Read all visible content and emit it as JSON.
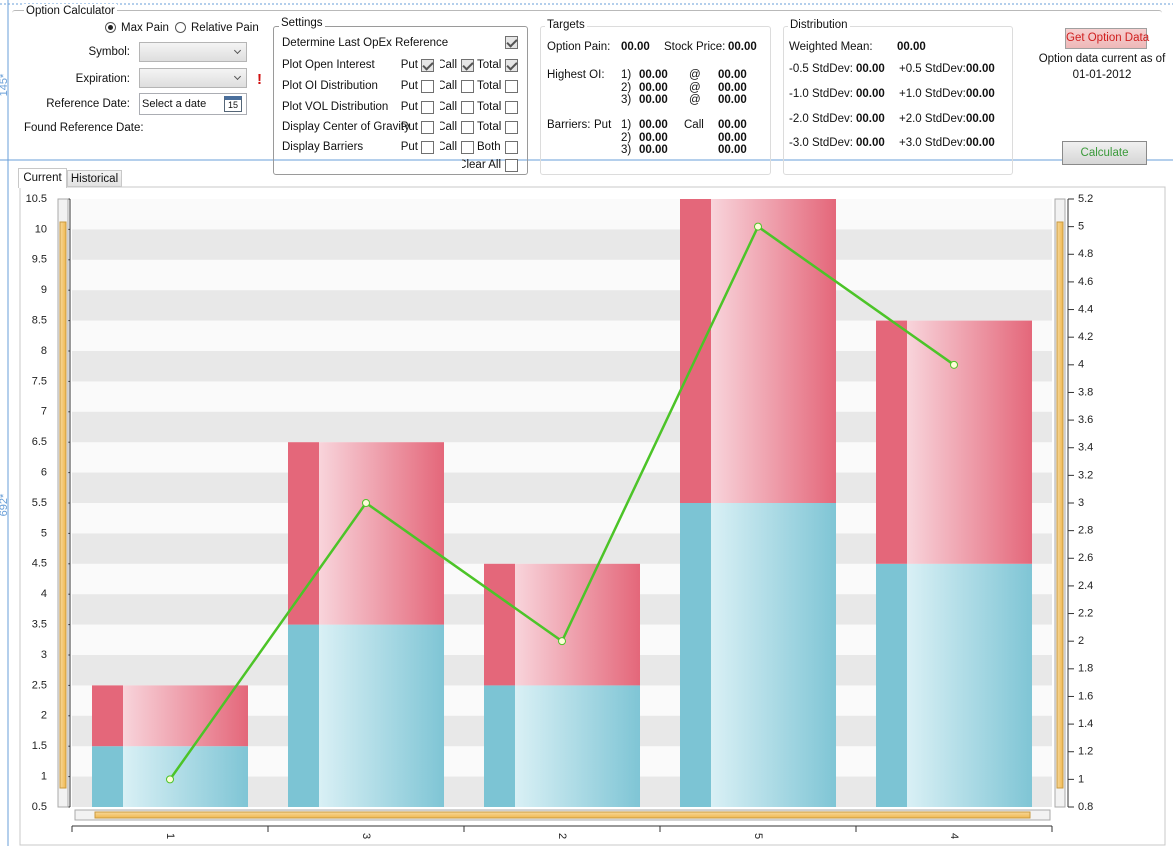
{
  "designer_marks": [
    "145*",
    "692*"
  ],
  "option_calculator": {
    "title": "Option Calculator",
    "modes": [
      {
        "label": "Max Pain",
        "selected": true
      },
      {
        "label": "Relative Pain",
        "selected": false
      }
    ],
    "fields": [
      "Symbol:",
      "Expiration:",
      "Reference Date:"
    ],
    "date_placeholder": "Select a date",
    "calendar_day": "15",
    "validation_mark": "!",
    "found_reference_date": "Found Reference Date:"
  },
  "settings": {
    "title": "Settings",
    "determine": {
      "label": "Determine Last OpEx Reference",
      "checked": true
    },
    "rows": [
      {
        "label": "Plot Open Interest",
        "options": [
          "Put",
          "Call",
          "Total"
        ],
        "checked": true
      },
      {
        "label": "Plot OI Distribution",
        "options": [
          "Put",
          "Call",
          "Total"
        ],
        "checked": false
      },
      {
        "label": "Plot VOL Distribution",
        "options": [
          "Put",
          "Call",
          "Total"
        ],
        "checked": false
      },
      {
        "label": "Display Center of Gravity",
        "options": [
          "Put",
          "Call",
          "Total"
        ],
        "checked": false
      },
      {
        "label": "Display Barriers",
        "options": [
          "Put",
          "Call",
          "Both"
        ],
        "checked": false
      }
    ],
    "clear_all": "Clear All"
  },
  "targets": {
    "title": "Targets",
    "option_pain": "Option Pain:",
    "option_pain_value": "00.00",
    "stock_price": "Stock Price:",
    "stock_price_value": "00.00",
    "highest_oi": "Highest OI:",
    "highest_oi_rows": [
      [
        "1)",
        "00.00",
        "@",
        "00.00"
      ],
      [
        "2)",
        "00.00",
        "@",
        "00.00"
      ],
      [
        "3)",
        "00.00",
        "@",
        "00.00"
      ]
    ],
    "barriers": "Barriers:",
    "put": "Put",
    "call": "Call",
    "barrier_rows": [
      [
        "1)",
        "00.00",
        "00.00"
      ],
      [
        "2)",
        "00.00",
        "00.00"
      ],
      [
        "3)",
        "00.00",
        "00.00"
      ]
    ]
  },
  "distribution": {
    "title": "Distribution",
    "weighted_mean": "Weighted Mean:",
    "weighted_mean_value": "00.00",
    "rows": [
      [
        "-0.5 StdDev:",
        "00.00",
        "+0.5 StdDev:",
        "00.00"
      ],
      [
        "-1.0 StdDev:",
        "00.00",
        "+1.0 StdDev:",
        "00.00"
      ],
      [
        "-2.0 StdDev:",
        "00.00",
        "+2.0 StdDev:",
        "00.00"
      ],
      [
        "-3.0 StdDev:",
        "00.00",
        "+3.0 StdDev:",
        "00.00"
      ]
    ]
  },
  "actions": {
    "get_option_data": "Get Option Data",
    "data_current_as_of": "Option data current as of",
    "data_date": "01-01-2012",
    "calculate": "Calculate"
  },
  "tabs": [
    "Current",
    "Historical"
  ],
  "chart_data": {
    "type": "bar",
    "stacked": true,
    "categories": [
      "1",
      "3",
      "2",
      "5",
      "4"
    ],
    "series": [
      {
        "color": "#7cc4d4",
        "values": [
          1,
          3,
          2,
          5,
          4
        ]
      },
      {
        "color": "#e4677a",
        "values": [
          1,
          3,
          2,
          5,
          4
        ]
      },
      {
        "type": "line",
        "axis": "y2",
        "color": "#4cc428",
        "values": [
          1,
          3,
          2,
          5,
          4
        ]
      }
    ],
    "ylim": [
      0.5,
      10.5
    ],
    "yticks": [
      0.5,
      1,
      1.5,
      2,
      2.5,
      3,
      3.5,
      4,
      4.5,
      5,
      5.5,
      6,
      6.5,
      7,
      7.5,
      8,
      8.5,
      9,
      9.5,
      10,
      10.5
    ],
    "y2lim": [
      0.8,
      5.2
    ],
    "y2ticks": [
      0.8,
      1,
      1.2,
      1.4,
      1.6,
      1.8,
      2,
      2.2,
      2.4,
      2.6,
      2.8,
      3,
      3.2,
      3.4,
      3.6,
      3.8,
      4,
      4.2,
      4.4,
      4.6,
      4.8,
      5,
      5.2
    ],
    "grid": true
  }
}
